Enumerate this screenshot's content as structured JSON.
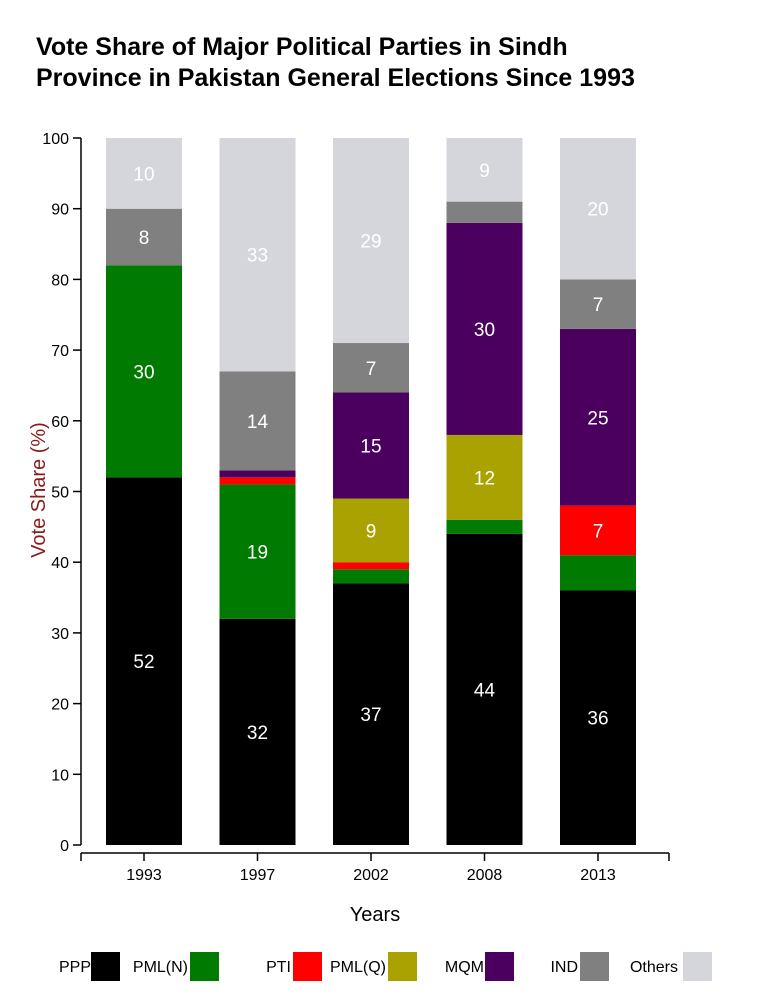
{
  "chart_data": {
    "type": "bar",
    "stacked": true,
    "title_lines": [
      "Vote Share of Major Political Parties in Sindh",
      "Province in Pakistan General Elections Since 1993"
    ],
    "xlabel": "Years",
    "ylabel": "Vote Share (%)",
    "ylim": [
      0,
      100
    ],
    "yticks": [
      0,
      10,
      20,
      30,
      40,
      50,
      60,
      70,
      80,
      90,
      100
    ],
    "categories": [
      "1993",
      "1997",
      "2002",
      "2008",
      "2013"
    ],
    "series": [
      {
        "name": "PPP",
        "color": "#000000",
        "values": [
          52,
          32,
          37,
          44,
          36
        ],
        "labels": [
          "52",
          "32",
          "37",
          "44",
          "36"
        ]
      },
      {
        "name": "PML(N)",
        "color": "#007a00",
        "values": [
          30,
          19,
          2,
          2,
          5
        ],
        "labels": [
          "30",
          "19",
          "",
          "",
          ""
        ]
      },
      {
        "name": "PTI",
        "color": "#ff0000",
        "values": [
          0,
          1,
          1,
          0,
          7
        ],
        "labels": [
          "",
          "",
          "",
          "",
          "7"
        ]
      },
      {
        "name": "PML(Q)",
        "color": "#aaa200",
        "values": [
          0,
          0,
          9,
          12,
          0
        ],
        "labels": [
          "",
          "",
          "9",
          "12",
          ""
        ]
      },
      {
        "name": "MQM",
        "color": "#4b0060",
        "values": [
          0,
          1,
          15,
          30,
          25
        ],
        "labels": [
          "",
          "",
          "15",
          "30",
          "25"
        ]
      },
      {
        "name": "IND",
        "color": "#808080",
        "values": [
          8,
          14,
          7,
          3,
          7
        ],
        "labels": [
          "8",
          "14",
          "7",
          "",
          "7"
        ]
      },
      {
        "name": "Others",
        "color": "#d4d6dc",
        "values": [
          10,
          33,
          29,
          9,
          20
        ],
        "labels": [
          "10",
          "33",
          "29",
          "9",
          "20"
        ]
      }
    ]
  }
}
